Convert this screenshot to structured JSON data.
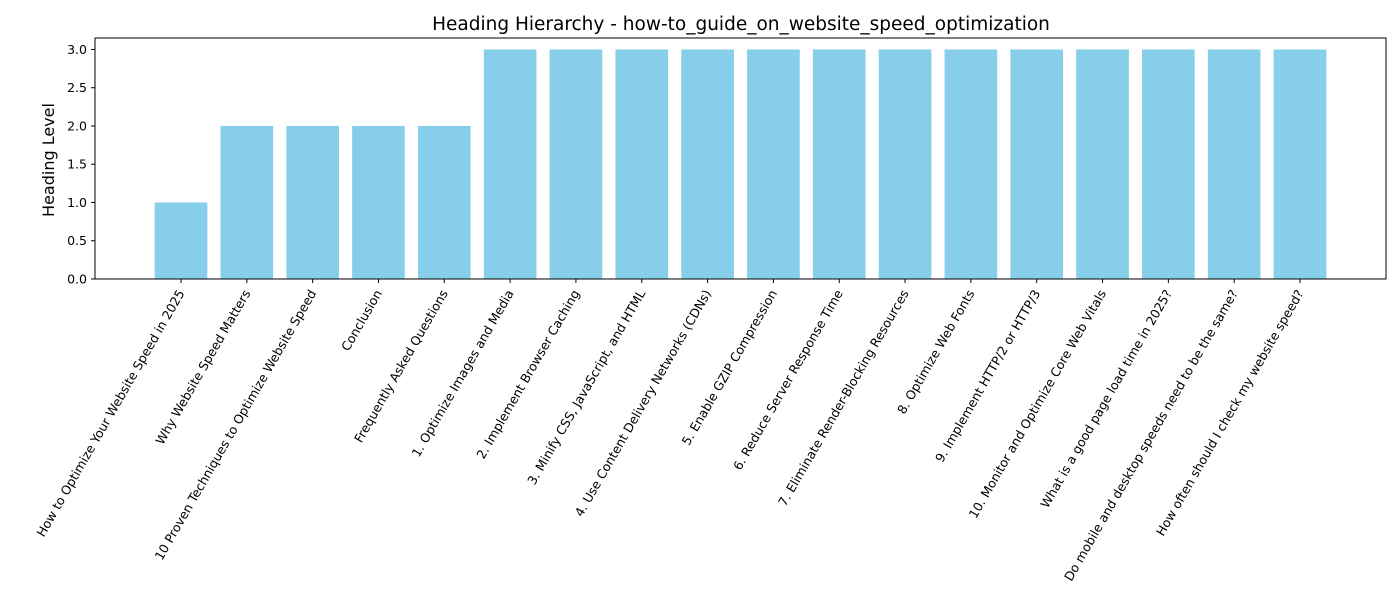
{
  "chart_data": {
    "type": "bar",
    "title": "Heading Hierarchy - how-to_guide_on_website_speed_optimization",
    "xlabel": "",
    "ylabel": "Heading Level",
    "ylim": [
      0,
      3.15
    ],
    "yticks": [
      "0.0",
      "0.5",
      "1.0",
      "1.5",
      "2.0",
      "2.5",
      "3.0"
    ],
    "bar_color": "#87CEEB",
    "grid": false,
    "categories": [
      "How to Optimize Your Website Speed in 2025",
      "Why Website Speed Matters",
      "10 Proven Techniques to Optimize Website Speed",
      "Conclusion",
      "Frequently Asked Questions",
      "1. Optimize Images and Media",
      "2. Implement Browser Caching",
      "3. Minify CSS, JavaScript, and HTML",
      "4. Use Content Delivery Networks (CDNs)",
      "5. Enable GZIP Compression",
      "6. Reduce Server Response Time",
      "7. Eliminate Render-Blocking Resources",
      "8. Optimize Web Fonts",
      "9. Implement HTTP/2 or HTTP/3",
      "10. Monitor and Optimize Core Web Vitals",
      "What is a good page load time in 2025?",
      "Do mobile and desktop speeds need to be the same?",
      "How often should I check my website speed?"
    ],
    "values": [
      1,
      2,
      2,
      2,
      2,
      3,
      3,
      3,
      3,
      3,
      3,
      3,
      3,
      3,
      3,
      3,
      3,
      3
    ]
  }
}
